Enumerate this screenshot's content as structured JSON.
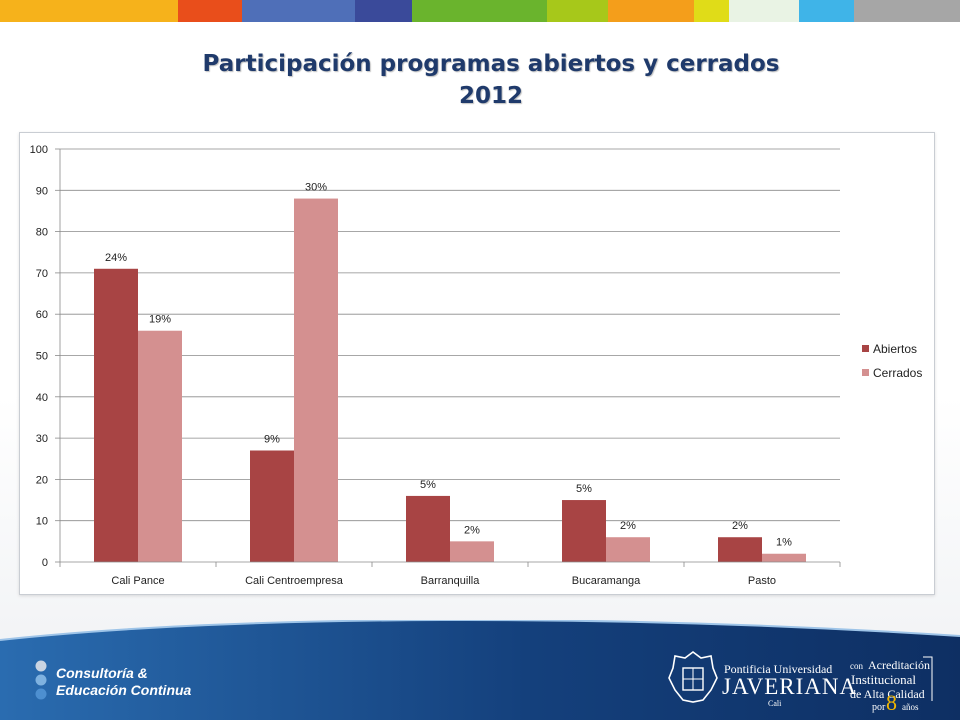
{
  "slide": {
    "title_line1": "Participación programas abiertos y cerrados",
    "title_line2": "2012",
    "strip_colors": [
      "#f6b21b",
      "#e94e1b",
      "#4f6fb8",
      "#3a4a9a",
      "#6ab42d",
      "#a7c81a",
      "#f49e1b",
      "#e0dc18",
      "#e9f3e4",
      "#3fb4e8",
      "#a6a6a6"
    ],
    "title_color": "#1f3a6b"
  },
  "chart_data": {
    "type": "bar",
    "title": "",
    "xlabel": "",
    "ylabel": "",
    "categories": [
      "Cali Pance",
      "Cali Centroempresa",
      "Barranquilla",
      "Bucaramanga",
      "Pasto"
    ],
    "ylim": [
      0,
      100
    ],
    "yticks": [
      0,
      10,
      20,
      30,
      40,
      50,
      60,
      70,
      80,
      90,
      100
    ],
    "grid": true,
    "legend_position": "right",
    "series": [
      {
        "name": "Abiertos",
        "color": "#a84444",
        "values": [
          71,
          27,
          16,
          15,
          6
        ],
        "labels": [
          "24%",
          "9%",
          "5%",
          "5%",
          "2%"
        ]
      },
      {
        "name": "Cerrados",
        "color": "#d49090",
        "values": [
          56,
          88,
          5,
          6,
          2
        ],
        "labels": [
          "19%",
          "30%",
          "2%",
          "2%",
          "1%"
        ]
      }
    ]
  },
  "footer": {
    "left_line1": "Consultoría &",
    "left_line2": "Educación Continua",
    "javeriana_line1": "Pontificia Universidad",
    "javeriana_line2": "JAVERIANA",
    "javeriana_line3": "Cali",
    "accred_con": "con",
    "accred_line1": "Acreditación",
    "accred_line2": "Institucional",
    "accred_line3": "de Alta Calidad",
    "accred_por": "por",
    "accred_num": "8",
    "accred_anos": "años",
    "band_color_dark": "#0e2f63",
    "band_color_light": "#2a6cb0"
  }
}
